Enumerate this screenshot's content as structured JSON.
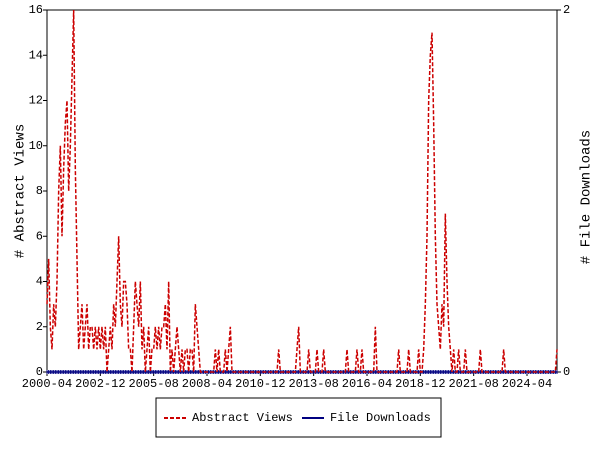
{
  "chart_data": {
    "type": "line",
    "y_label": "# Abstract Views",
    "y2_label": "# File Downloads",
    "x": [
      "2000-04",
      "2000-05",
      "2000-06",
      "2000-07",
      "2000-08",
      "2000-09",
      "2000-10",
      "2000-11",
      "2000-12",
      "2001-01",
      "2001-02",
      "2001-03",
      "2001-04",
      "2001-05",
      "2001-06",
      "2001-07",
      "2001-08",
      "2001-09",
      "2001-10",
      "2001-11",
      "2001-12",
      "2002-01",
      "2002-02",
      "2002-03",
      "2002-04",
      "2002-05",
      "2002-06",
      "2002-07",
      "2002-08",
      "2002-09",
      "2002-10",
      "2002-11",
      "2002-12",
      "2003-01",
      "2003-02",
      "2003-03",
      "2003-04",
      "2003-05",
      "2003-06",
      "2003-07",
      "2003-08",
      "2003-09",
      "2003-10",
      "2003-11",
      "2003-12",
      "2004-01",
      "2004-02",
      "2004-03",
      "2004-04",
      "2004-05",
      "2004-06",
      "2004-07",
      "2004-08",
      "2004-09",
      "2004-10",
      "2004-11",
      "2004-12",
      "2005-01",
      "2005-02",
      "2005-03",
      "2005-04",
      "2005-05",
      "2005-06",
      "2005-07",
      "2005-08",
      "2005-09",
      "2005-10",
      "2005-11",
      "2005-12",
      "2006-01",
      "2006-02",
      "2006-03",
      "2006-04",
      "2006-05",
      "2006-06",
      "2006-07",
      "2006-08",
      "2006-09",
      "2006-10",
      "2006-11",
      "2006-12",
      "2007-01",
      "2007-02",
      "2007-03",
      "2007-04",
      "2007-05",
      "2007-06",
      "2007-07",
      "2007-08",
      "2007-09",
      "2007-10",
      "2007-11",
      "2007-12",
      "2008-01",
      "2008-02",
      "2008-03",
      "2008-04",
      "2008-05",
      "2008-06",
      "2008-07",
      "2008-08",
      "2008-09",
      "2008-10",
      "2008-11",
      "2008-12",
      "2009-01",
      "2009-02",
      "2009-03",
      "2009-04",
      "2009-05",
      "2009-06",
      "2009-07",
      "2009-08",
      "2009-09",
      "2009-10",
      "2009-11",
      "2009-12",
      "2010-01",
      "2010-02",
      "2010-03",
      "2010-04",
      "2010-05",
      "2010-06",
      "2010-07",
      "2010-08",
      "2010-09",
      "2010-10",
      "2010-11",
      "2010-12",
      "2011-01",
      "2011-02",
      "2011-03",
      "2011-04",
      "2011-05",
      "2011-06",
      "2011-07",
      "2011-08",
      "2011-09",
      "2011-10",
      "2011-11",
      "2011-12",
      "2012-01",
      "2012-02",
      "2012-03",
      "2012-04",
      "2012-05",
      "2012-06",
      "2012-07",
      "2012-08",
      "2012-09",
      "2012-10",
      "2012-11",
      "2012-12",
      "2013-01",
      "2013-02",
      "2013-03",
      "2013-04",
      "2013-05",
      "2013-06",
      "2013-07",
      "2013-08",
      "2013-09",
      "2013-10",
      "2013-11",
      "2013-12",
      "2014-01",
      "2014-02",
      "2014-03",
      "2014-04",
      "2014-05",
      "2014-06",
      "2014-07",
      "2014-08",
      "2014-09",
      "2014-10",
      "2014-11",
      "2014-12",
      "2015-01",
      "2015-02",
      "2015-03",
      "2015-04",
      "2015-05",
      "2015-06",
      "2015-07",
      "2015-08",
      "2015-09",
      "2015-10",
      "2015-11",
      "2015-12",
      "2016-01",
      "2016-02",
      "2016-03",
      "2016-04",
      "2016-05",
      "2016-06",
      "2016-07",
      "2016-08",
      "2016-09",
      "2016-10",
      "2016-11",
      "2016-12",
      "2017-01",
      "2017-02",
      "2017-03",
      "2017-04",
      "2017-05",
      "2017-06",
      "2017-07",
      "2017-08",
      "2017-09",
      "2017-10",
      "2017-11",
      "2017-12",
      "2018-01",
      "2018-02",
      "2018-03",
      "2018-04",
      "2018-05",
      "2018-06",
      "2018-07",
      "2018-08",
      "2018-09",
      "2018-10",
      "2018-11",
      "2018-12",
      "2019-01",
      "2019-02",
      "2019-03",
      "2019-04",
      "2019-05",
      "2019-06",
      "2019-07",
      "2019-08",
      "2019-09",
      "2019-10",
      "2019-11",
      "2019-12",
      "2020-01",
      "2020-02",
      "2020-03",
      "2020-04",
      "2020-05",
      "2020-06",
      "2020-07",
      "2020-08",
      "2020-09",
      "2020-10",
      "2020-11",
      "2020-12",
      "2021-01",
      "2021-02",
      "2021-03",
      "2021-04",
      "2021-05",
      "2021-06",
      "2021-07",
      "2021-08",
      "2021-09",
      "2021-10",
      "2021-11",
      "2021-12",
      "2022-01",
      "2022-02",
      "2022-03",
      "2022-04",
      "2022-05",
      "2022-06",
      "2022-07",
      "2022-08",
      "2022-09",
      "2022-10",
      "2022-11",
      "2022-12",
      "2023-01",
      "2023-02",
      "2023-03",
      "2023-04",
      "2023-05",
      "2023-06",
      "2023-07",
      "2023-08",
      "2023-09",
      "2023-10",
      "2023-11",
      "2023-12",
      "2024-01",
      "2024-02",
      "2024-03",
      "2024-04",
      "2024-05",
      "2024-06",
      "2024-07",
      "2024-08",
      "2024-09",
      "2024-10",
      "2024-11",
      "2024-12",
      "2025-01",
      "2025-02",
      "2025-03",
      "2025-04",
      "2025-05",
      "2025-06",
      "2025-07",
      "2025-08",
      "2025-09",
      "2025-10"
    ],
    "xticks": [
      "2000-04",
      "2002-12",
      "2005-08",
      "2008-04",
      "2010-12",
      "2013-08",
      "2016-04",
      "2018-12",
      "2021-08",
      "2024-04"
    ],
    "ylim": [
      0,
      16
    ],
    "yticks": [
      0,
      2,
      4,
      6,
      8,
      10,
      12,
      14,
      16
    ],
    "y2lim": [
      0,
      2
    ],
    "y2ticks": [
      0,
      2
    ],
    "series": [
      {
        "name": "Abstract Views",
        "color": "#cc0000",
        "values": [
          3,
          5,
          2,
          1,
          3,
          2,
          4,
          8,
          10,
          6,
          9,
          11,
          12,
          8,
          10,
          13,
          16,
          9,
          5,
          1,
          2,
          3,
          1,
          2,
          3,
          1,
          2,
          2,
          1,
          2,
          1,
          2,
          1,
          2,
          1,
          2,
          0,
          1,
          2,
          1,
          3,
          2,
          4,
          6,
          3,
          2,
          4,
          4,
          3,
          1,
          1,
          0,
          2,
          4,
          3,
          2,
          4,
          1,
          2,
          0,
          1,
          2,
          0,
          1,
          1,
          2,
          1,
          2,
          1,
          2,
          2,
          3,
          1,
          4,
          0,
          1,
          0,
          1,
          2,
          1,
          0,
          1,
          0,
          1,
          1,
          0,
          1,
          1,
          0,
          3,
          2,
          1,
          0,
          0,
          0,
          0,
          0,
          0,
          0,
          0,
          0,
          1,
          0,
          1,
          0,
          0,
          0,
          1,
          0,
          1,
          2,
          0,
          0,
          0,
          0,
          0,
          0,
          0,
          0,
          0,
          0,
          0,
          0,
          0,
          0,
          0,
          0,
          0,
          0,
          0,
          0,
          0,
          0,
          0,
          0,
          0,
          0,
          0,
          0,
          1,
          0,
          0,
          0,
          0,
          0,
          0,
          0,
          0,
          0,
          0,
          1,
          2,
          0,
          0,
          0,
          0,
          0,
          1,
          0,
          0,
          0,
          0,
          1,
          0,
          0,
          0,
          1,
          0,
          0,
          0,
          0,
          0,
          0,
          0,
          0,
          0,
          0,
          0,
          0,
          0,
          1,
          0,
          0,
          0,
          0,
          0,
          1,
          0,
          0,
          1,
          0,
          0,
          0,
          0,
          0,
          0,
          0,
          2,
          0,
          0,
          0,
          0,
          0,
          0,
          0,
          0,
          0,
          0,
          0,
          0,
          0,
          1,
          0,
          0,
          0,
          0,
          0,
          1,
          0,
          0,
          0,
          0,
          0,
          1,
          0,
          0,
          1,
          3,
          6,
          12,
          14,
          15,
          11,
          6,
          3,
          2,
          1,
          3,
          2,
          7,
          4,
          2,
          1,
          0,
          1,
          0,
          0,
          1,
          0,
          0,
          0,
          1,
          0,
          0,
          0,
          0,
          0,
          0,
          0,
          0,
          1,
          0,
          0,
          0,
          0,
          0,
          0,
          0,
          0,
          0,
          0,
          0,
          0,
          0,
          1,
          0,
          0,
          0,
          0,
          0,
          0,
          0,
          0,
          0,
          0,
          0,
          0,
          0,
          0,
          0,
          0,
          0,
          0,
          0,
          0,
          0,
          0,
          0,
          0,
          0,
          0,
          0,
          0,
          0,
          0,
          0,
          1
        ]
      },
      {
        "name": "File Downloads",
        "color": "#000080",
        "axis": "y2",
        "values": [
          0,
          0,
          0,
          0,
          0,
          0,
          0,
          0,
          0,
          0,
          0,
          0,
          0,
          0,
          0,
          0,
          0,
          0,
          0,
          0,
          0,
          0,
          0,
          0,
          0,
          0,
          0,
          0,
          0,
          0,
          0,
          0,
          0,
          0,
          0,
          0,
          0,
          0,
          0,
          0,
          0,
          0,
          0,
          0,
          0,
          0,
          0,
          0,
          0,
          0,
          0,
          0,
          0,
          0,
          0,
          0,
          0,
          0,
          0,
          0,
          0,
          0,
          0,
          0,
          0,
          0,
          0,
          0,
          0,
          0,
          0,
          0,
          0,
          0,
          0,
          0,
          0,
          0,
          0,
          0,
          0,
          0,
          0,
          0,
          0,
          0,
          0,
          0,
          0,
          0,
          0,
          0,
          0,
          0,
          0,
          0,
          0,
          0,
          0,
          0,
          0,
          0,
          0,
          0,
          0,
          0,
          0,
          0,
          0,
          0,
          0,
          0,
          0,
          0,
          0,
          0,
          0,
          0,
          0,
          0,
          0,
          0,
          0,
          0,
          0,
          0,
          0,
          0,
          0,
          0,
          0,
          0,
          0,
          0,
          0,
          0,
          0,
          0,
          0,
          0,
          0,
          0,
          0,
          0,
          0,
          0,
          0,
          0,
          0,
          0,
          0,
          0,
          0,
          0,
          0,
          0,
          0,
          0,
          0,
          0,
          0,
          0,
          0,
          0,
          0,
          0,
          0,
          0,
          0,
          0,
          0,
          0,
          0,
          0,
          0,
          0,
          0,
          0,
          0,
          0,
          0,
          0,
          0,
          0,
          0,
          0,
          0,
          0,
          0,
          0,
          0,
          0,
          0,
          0,
          0,
          0,
          0,
          0,
          0,
          0,
          0,
          0,
          0,
          0,
          0,
          0,
          0,
          0,
          0,
          0,
          0,
          0,
          0,
          0,
          0,
          0,
          0,
          0,
          0,
          0,
          0,
          0,
          0,
          0,
          0,
          0,
          0,
          0,
          0,
          0,
          0,
          0,
          0,
          0,
          0,
          0,
          0,
          0,
          0,
          0,
          0,
          0,
          0,
          0,
          0,
          0,
          0,
          0,
          0,
          0,
          0,
          0,
          0,
          0,
          0,
          0,
          0,
          0,
          0,
          0,
          0,
          0,
          0,
          0,
          0,
          0,
          0,
          0,
          0,
          0,
          0,
          0,
          0,
          0,
          0,
          0,
          0,
          0,
          0,
          0,
          0,
          0,
          0,
          0,
          0,
          0,
          0,
          0,
          0,
          0,
          0,
          0,
          0,
          0,
          0,
          0,
          0,
          0,
          0,
          0,
          0,
          0,
          0,
          0,
          0,
          0,
          0
        ]
      }
    ],
    "legend": "bottom"
  }
}
